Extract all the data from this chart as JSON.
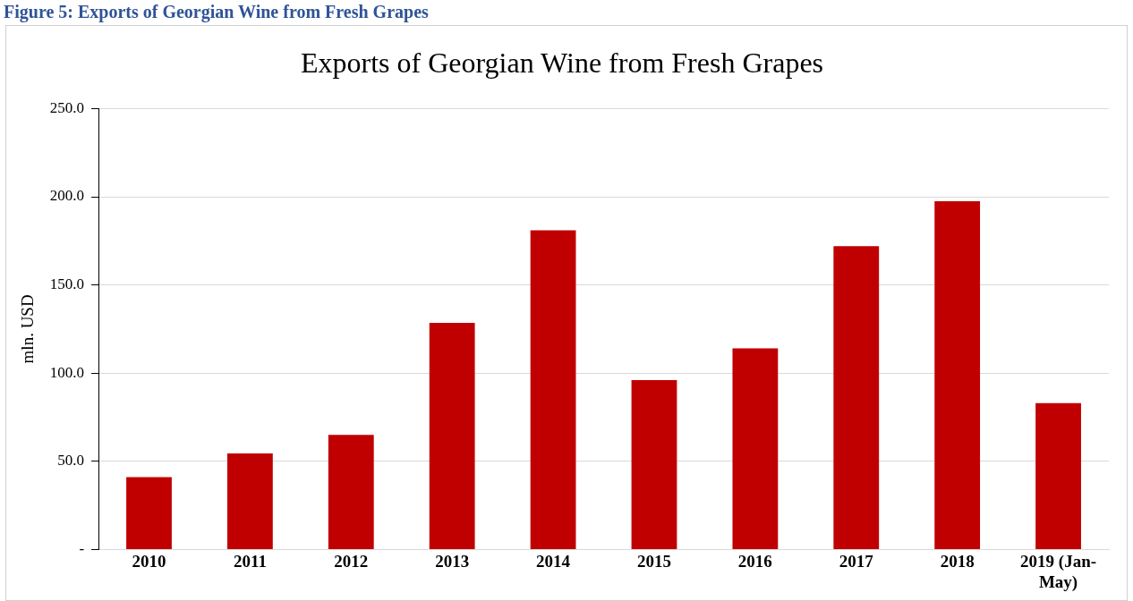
{
  "chart_data": {
    "type": "bar",
    "title": "Exports of Georgian Wine from Fresh Grapes",
    "ylabel": "mln. USD",
    "annotations": [
      "Figure 5: Exports of Georgian Wine from Fresh Grapes"
    ],
    "categories": [
      "2010",
      "2011",
      "2012",
      "2013",
      "2014",
      "2015",
      "2016",
      "2017",
      "2018",
      "2019 (Jan-May)"
    ],
    "values": [
      41,
      54.5,
      65,
      128.5,
      181,
      96,
      114,
      172,
      197.5,
      83
    ],
    "color": "#c00000",
    "ylim": [
      0,
      250
    ],
    "yticks": [
      {
        "value": 0,
        "label": "-"
      },
      {
        "value": 50,
        "label": "50.0"
      },
      {
        "value": 100,
        "label": "100.0"
      },
      {
        "value": 150,
        "label": "150.0"
      },
      {
        "value": 200,
        "label": "200.0"
      },
      {
        "value": 250,
        "label": "250.0"
      }
    ],
    "grid": "y",
    "legend": false
  }
}
